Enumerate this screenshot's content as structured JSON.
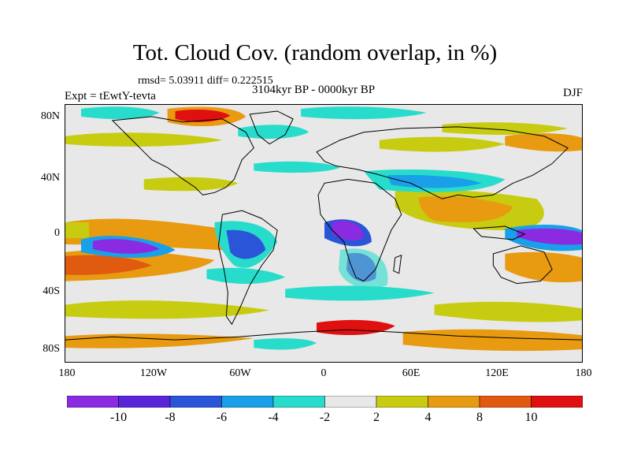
{
  "title": "Tot. Cloud Cov. (random overlap, in %)",
  "stats": "rmsd= 5.03911 diff= 0.222515",
  "expt": "Expt = tEwtY-tevta",
  "period": "3104kyr BP - 0000kyr BP",
  "season": "DJF",
  "lat_labels": [
    "80N",
    "40N",
    "0",
    "40S",
    "80S"
  ],
  "lon_labels": [
    "180",
    "120W",
    "60W",
    "0",
    "60E",
    "120E",
    "180"
  ],
  "colorbar": {
    "labels": [
      "-10",
      "-8",
      "-6",
      "-4",
      "-2",
      "2",
      "4",
      "8",
      "10"
    ],
    "colors": [
      "#8a2be2",
      "#5a24d8",
      "#2a55d8",
      "#1aa0e8",
      "#28dccc",
      "#e8e8e8",
      "#c8cc10",
      "#e89a10",
      "#e05a10",
      "#e01010"
    ]
  },
  "colors": {
    "neutral": "#e8e8e8",
    "coast": "#000000"
  }
}
